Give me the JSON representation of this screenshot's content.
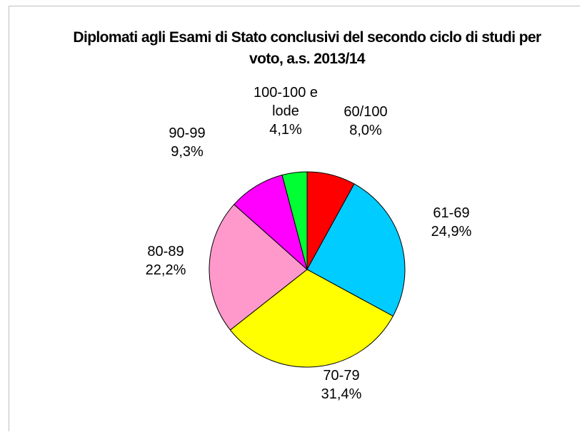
{
  "chart_data": {
    "type": "pie",
    "title": "Diplomati agli Esami di Stato conclusivi del secondo ciclo di studi per voto, a.s. 2013/14",
    "categories": [
      "60/100",
      "61-69",
      "70-79",
      "80-89",
      "90-99",
      "100-100 e lode"
    ],
    "values": [
      8.0,
      24.9,
      31.4,
      22.2,
      9.3,
      4.1
    ],
    "value_labels": [
      "8,0%",
      "24,9%",
      "31,4%",
      "22,2%",
      "9,3%",
      "4,1%"
    ],
    "colors": [
      "#ff0000",
      "#00ccff",
      "#ffff00",
      "#ff99cc",
      "#ff00ff",
      "#00ff33"
    ]
  }
}
